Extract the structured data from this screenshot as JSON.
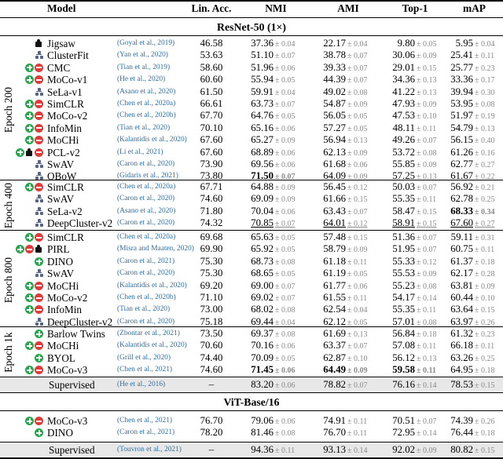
{
  "header": {
    "model": "Model",
    "lin_acc": "Lin. Acc.",
    "nmi": "NMI",
    "ami": "AMI",
    "top1": "Top-1",
    "map": "mAP"
  },
  "section_resnet": "ResNet-50 (1×)",
  "section_vit": "ViT-Base/16",
  "icon_legend": {
    "puzzle": "puzzle-icon",
    "cluster": "cluster-icon",
    "plus": "positive-pair-icon",
    "minus": "negative-pair-icon"
  },
  "colors": {
    "citation": "#2b6fa8",
    "std": "#8a8a8a",
    "plus": "#22a84a",
    "minus": "#df3b3b",
    "cluster": "#56648a",
    "supervised_bg": "#e8e8e8"
  },
  "groups": [
    {
      "label": "Epoch 200",
      "rows": [
        0,
        11
      ]
    },
    {
      "label": "Epoch 400",
      "rows": [
        12,
        15
      ]
    },
    {
      "label": "Epoch 800",
      "rows": [
        16,
        23
      ]
    },
    {
      "label": "Epoch 1k",
      "rows": [
        24,
        27
      ]
    }
  ],
  "resnet_rows": [
    {
      "icons": [
        "puzzle"
      ],
      "model": "Jigsaw",
      "cite": "(Goyal et al., 2019)",
      "lin": "46.58",
      "nmi": [
        "37.36",
        "± 0.04"
      ],
      "ami": [
        "22.17",
        "± 0.04"
      ],
      "top1": [
        "9.80",
        "± 0.05"
      ],
      "map": [
        "5.95",
        "± 0.04"
      ]
    },
    {
      "icons": [
        "cluster"
      ],
      "model": "ClusterFit",
      "cite": "(Yan et al., 2020)",
      "lin": "53.63",
      "nmi": [
        "51.10",
        "± 0.07"
      ],
      "ami": [
        "38.78",
        "± 0.07"
      ],
      "top1": [
        "30.06",
        "± 0.09"
      ],
      "map": [
        "25.41",
        "± 0.11"
      ]
    },
    {
      "icons": [
        "plus",
        "minus"
      ],
      "model": "CMC",
      "cite": "(Tian et al., 2019)",
      "lin": "58.60",
      "nmi": [
        "51.96",
        "± 0.06"
      ],
      "ami": [
        "39.33",
        "± 0.07"
      ],
      "top1": [
        "29.01",
        "± 0.15"
      ],
      "map": [
        "25.77",
        "± 0.23"
      ]
    },
    {
      "icons": [
        "plus",
        "minus"
      ],
      "model": "MoCo-v1",
      "cite": "(He et al., 2020)",
      "lin": "60.60",
      "nmi": [
        "55.94",
        "± 0.05"
      ],
      "ami": [
        "44.39",
        "± 0.07"
      ],
      "top1": [
        "34.36",
        "± 0.13"
      ],
      "map": [
        "33.36",
        "± 0.17"
      ]
    },
    {
      "icons": [
        "cluster"
      ],
      "model": "SeLa-v1",
      "cite": "(Asano et al., 2020)",
      "lin": "61.50",
      "nmi": [
        "59.91",
        "± 0.04"
      ],
      "ami": [
        "49.02",
        "± 0.08"
      ],
      "top1": [
        "41.22",
        "± 0.13"
      ],
      "map": [
        "39.94",
        "± 0.30"
      ]
    },
    {
      "icons": [
        "plus",
        "minus"
      ],
      "model": "SimCLR",
      "cite": "(Chen et al., 2020a)",
      "lin": "66.61",
      "nmi": [
        "63.73",
        "± 0.07"
      ],
      "ami": [
        "54.87",
        "± 0.09"
      ],
      "top1": [
        "47.93",
        "± 0.09"
      ],
      "map": [
        "53.95",
        "± 0.08"
      ]
    },
    {
      "icons": [
        "plus",
        "minus"
      ],
      "model": "MoCo-v2",
      "cite": "(Chen et al., 2020b)",
      "lin": "67.70",
      "nmi": [
        "64.76",
        "± 0.05"
      ],
      "ami": [
        "56.05",
        "± 0.05"
      ],
      "top1": [
        "47.53",
        "± 0.10"
      ],
      "map": [
        "51.97",
        "± 0.19"
      ]
    },
    {
      "icons": [
        "plus",
        "minus"
      ],
      "model": "InfoMin",
      "cite": "(Tian et al., 2020)",
      "lin": "70.10",
      "nmi": [
        "65.16",
        "± 0.06"
      ],
      "ami": [
        "57.27",
        "± 0.05"
      ],
      "top1": [
        "48.11",
        "± 0.11"
      ],
      "map": [
        "54.79",
        "± 0.13"
      ]
    },
    {
      "icons": [
        "plus",
        "minus"
      ],
      "model": "MoCHi",
      "cite": "(Kalantidis et al., 2020)",
      "lin": "67.60",
      "nmi": [
        "65.27",
        "± 0.09"
      ],
      "ami": [
        "56.94",
        "± 0.13"
      ],
      "top1": [
        "49.26",
        "± 0.07"
      ],
      "map": [
        "56.15",
        "± 0.40"
      ]
    },
    {
      "icons": [
        "plus",
        "puzzle",
        "minus"
      ],
      "model": "PCL-v2",
      "cite": "(Li et al., 2021)",
      "lin": "67.60",
      "nmi": [
        "68.89",
        "± 0.06"
      ],
      "ami": [
        "62.13",
        "± 0.09"
      ],
      "top1": [
        "53.72",
        "± 0.08"
      ],
      "map": [
        "61.26",
        "± 0.16"
      ]
    },
    {
      "icons": [
        "cluster"
      ],
      "model": "SwAV",
      "cite": "(Caron et al., 2020)",
      "lin": "73.90",
      "nmi": [
        "69.56",
        "± 0.06"
      ],
      "ami": [
        "61.68",
        "± 0.06"
      ],
      "top1": [
        "55.85",
        "± 0.09"
      ],
      "map": [
        "62.77",
        "± 0.27"
      ]
    },
    {
      "icons": [
        "cluster"
      ],
      "model": "OBoW",
      "cite": "(Gidaris et al., 2021)",
      "lin": "73.80",
      "nmi": [
        "71.50",
        "± 0.07"
      ],
      "ami": [
        "64.09",
        "± 0.09"
      ],
      "top1": [
        "57.25",
        "± 0.13"
      ],
      "map": [
        "61.67",
        "± 0.22"
      ],
      "nmi_bold": true,
      "ami_ul": true
    },
    {
      "icons": [
        "plus",
        "minus"
      ],
      "model": "SimCLR",
      "cite": "(Chen et al., 2020a)",
      "lin": "67.71",
      "nmi": [
        "64.88",
        "± 0.09"
      ],
      "ami": [
        "56.45",
        "± 0.12"
      ],
      "top1": [
        "50.03",
        "± 0.07"
      ],
      "map": [
        "56.92",
        "± 0.21"
      ]
    },
    {
      "icons": [
        "cluster"
      ],
      "model": "SwAV",
      "cite": "(Caron et al., 2020)",
      "lin": "74.60",
      "nmi": [
        "69.09",
        "± 0.09"
      ],
      "ami": [
        "61.66",
        "± 0.15"
      ],
      "top1": [
        "55.35",
        "± 0.11"
      ],
      "map": [
        "62.78",
        "± 0.25"
      ]
    },
    {
      "icons": [
        "cluster"
      ],
      "model": "SeLa-v2",
      "cite": "(Asano et al., 2020)",
      "lin": "71.80",
      "nmi": [
        "70.04",
        "± 0.06"
      ],
      "ami": [
        "63.43",
        "± 0.07"
      ],
      "top1": [
        "58.47",
        "± 0.15"
      ],
      "map": [
        "68.33",
        "± 0.34"
      ],
      "map_bold": true
    },
    {
      "icons": [
        "cluster"
      ],
      "model": "DeepCluster-v2",
      "cite": "(Caron et al., 2020)",
      "lin": "74.32",
      "nmi": [
        "70.85",
        "± 0.07"
      ],
      "ami": [
        "64.01",
        "± 0.12"
      ],
      "top1": [
        "58.91",
        "± 0.15"
      ],
      "map": [
        "67.60",
        "± 0.27"
      ],
      "nmi_ul": true,
      "ami_ul": true,
      "top1_ul": true,
      "map_ul": true
    },
    {
      "icons": [
        "plus",
        "minus"
      ],
      "model": "SimCLR",
      "cite": "(Chen et al., 2020a)",
      "lin": "69.68",
      "nmi": [
        "65.63",
        "± 0.05"
      ],
      "ami": [
        "57.48",
        "± 0.15"
      ],
      "top1": [
        "51.36",
        "± 0.07"
      ],
      "map": [
        "59.11",
        "± 0.31"
      ]
    },
    {
      "icons": [
        "plus",
        "minus",
        "puzzle"
      ],
      "model": "PIRL",
      "cite": "(Misra and Maaten, 2020)",
      "lin": "69.90",
      "nmi": [
        "65.92",
        "± 0.05"
      ],
      "ami": [
        "58.79",
        "± 0.09"
      ],
      "top1": [
        "51.95",
        "± 0.07"
      ],
      "map": [
        "60.75",
        "± 0.11"
      ]
    },
    {
      "icons": [
        "plus"
      ],
      "model": "DINO",
      "cite": "(Caron et al., 2021)",
      "lin": "75.30",
      "nmi": [
        "68.73",
        "± 0.08"
      ],
      "ami": [
        "61.18",
        "± 0.11"
      ],
      "top1": [
        "55.33",
        "± 0.12"
      ],
      "map": [
        "61.37",
        "± 0.18"
      ]
    },
    {
      "icons": [
        "cluster"
      ],
      "model": "SwAV",
      "cite": "(Caron et al., 2020)",
      "lin": "75.30",
      "nmi": [
        "68.65",
        "± 0.05"
      ],
      "ami": [
        "61.19",
        "± 0.05"
      ],
      "top1": [
        "55.53",
        "± 0.09"
      ],
      "map": [
        "62.17",
        "± 0.28"
      ]
    },
    {
      "icons": [
        "plus",
        "minus"
      ],
      "model": "MoCHi",
      "cite": "(Kalantidis et al., 2020)",
      "lin": "69.20",
      "nmi": [
        "69.00",
        "± 0.07"
      ],
      "ami": [
        "61.77",
        "± 0.06"
      ],
      "top1": [
        "55.23",
        "± 0.08"
      ],
      "map": [
        "63.81",
        "± 0.09"
      ]
    },
    {
      "icons": [
        "plus",
        "minus"
      ],
      "model": "MoCo-v2",
      "cite": "(Chen et al., 2020b)",
      "lin": "71.10",
      "nmi": [
        "69.02",
        "± 0.07"
      ],
      "ami": [
        "61.55",
        "± 0.11"
      ],
      "top1": [
        "54.17",
        "± 0.14"
      ],
      "map": [
        "60.44",
        "± 0.10"
      ]
    },
    {
      "icons": [
        "plus",
        "minus"
      ],
      "model": "InfoMin",
      "cite": "(Tian et al., 2020)",
      "lin": "73.00",
      "nmi": [
        "68.02",
        "± 0.08"
      ],
      "ami": [
        "62.54",
        "± 0.04"
      ],
      "top1": [
        "55.35",
        "± 0.11"
      ],
      "map": [
        "63.64",
        "± 0.15"
      ]
    },
    {
      "icons": [
        "cluster"
      ],
      "model": "DeepCluster-v2",
      "cite": "(Caron et al., 2020)",
      "lin": "75.18",
      "nmi": [
        "69.44",
        "± 0.04"
      ],
      "ami": [
        "62.12",
        "± 0.05"
      ],
      "top1": [
        "57.01",
        "± 0.08"
      ],
      "map": [
        "63.97",
        "± 0.26"
      ]
    },
    {
      "icons": [
        "plus"
      ],
      "model": "Barlow Twins",
      "cite": "(Zbontar et al., 2021)",
      "lin": "73.50",
      "nmi": [
        "69.37",
        "± 0.08"
      ],
      "ami": [
        "61.69",
        "± 0.13"
      ],
      "top1": [
        "56.84",
        "± 0.18"
      ],
      "map": [
        "61.32",
        "± 0.23"
      ]
    },
    {
      "icons": [
        "plus",
        "minus"
      ],
      "model": "MoCHi",
      "cite": "(Kalantidis et al., 2020)",
      "lin": "70.60",
      "nmi": [
        "70.16",
        "± 0.06"
      ],
      "ami": [
        "63.37",
        "± 0.07"
      ],
      "top1": [
        "57.08",
        "± 0.11"
      ],
      "map": [
        "66.18",
        "± 0.11"
      ]
    },
    {
      "icons": [
        "plus"
      ],
      "model": "BYOL",
      "cite": "(Grill et al., 2020)",
      "lin": "74.40",
      "nmi": [
        "70.09",
        "± 0.05"
      ],
      "ami": [
        "62.87",
        "± 0.10"
      ],
      "top1": [
        "56.12",
        "± 0.13"
      ],
      "map": [
        "63.26",
        "± 0.25"
      ]
    },
    {
      "icons": [
        "plus",
        "minus"
      ],
      "model": "MoCo-v3",
      "cite": "(Chen et al., 2021)",
      "lin": "74.60",
      "nmi": [
        "71.45",
        "± 0.06"
      ],
      "ami": [
        "64.49",
        "± 0.09"
      ],
      "top1": [
        "59.58",
        "± 0.11"
      ],
      "map": [
        "64.95",
        "± 0.18"
      ],
      "nmi_bold": true,
      "ami_bold": true,
      "top1_bold": true
    }
  ],
  "resnet_supervised": {
    "model": "Supervised",
    "cite": "(He et al., 2016)",
    "lin": "–",
    "nmi": [
      "83.20",
      "± 0.06"
    ],
    "ami": [
      "78.82",
      "± 0.07"
    ],
    "top1": [
      "76.16",
      "± 0.14"
    ],
    "map": [
      "78.53",
      "± 0.15"
    ]
  },
  "vit_rows": [
    {
      "icons": [
        "plus",
        "minus"
      ],
      "model": "MoCo-v3",
      "cite": "(Chen et al., 2021)",
      "lin": "76.70",
      "nmi": [
        "79.06",
        "± 0.06"
      ],
      "ami": [
        "74.91",
        "± 0.11"
      ],
      "top1": [
        "70.51",
        "± 0.07"
      ],
      "map": [
        "74.39",
        "± 0.26"
      ]
    },
    {
      "icons": [
        "plus"
      ],
      "model": "DINO",
      "cite": "(Caron et al., 2021)",
      "lin": "78.20",
      "nmi": [
        "81.46",
        "± 0.08"
      ],
      "ami": [
        "76.70",
        "± 0.11"
      ],
      "top1": [
        "72.95",
        "± 0.14"
      ],
      "map": [
        "76.44",
        "± 0.18"
      ]
    }
  ],
  "vit_supervised": {
    "model": "Supervised",
    "cite": "(Touvron et al., 2021)",
    "lin": "–",
    "nmi": [
      "94.36",
      "± 0.11"
    ],
    "ami": [
      "93.13",
      "± 0.14"
    ],
    "top1": [
      "92.02",
      "± 0.09"
    ],
    "map": [
      "80.82",
      "± 0.15"
    ]
  }
}
